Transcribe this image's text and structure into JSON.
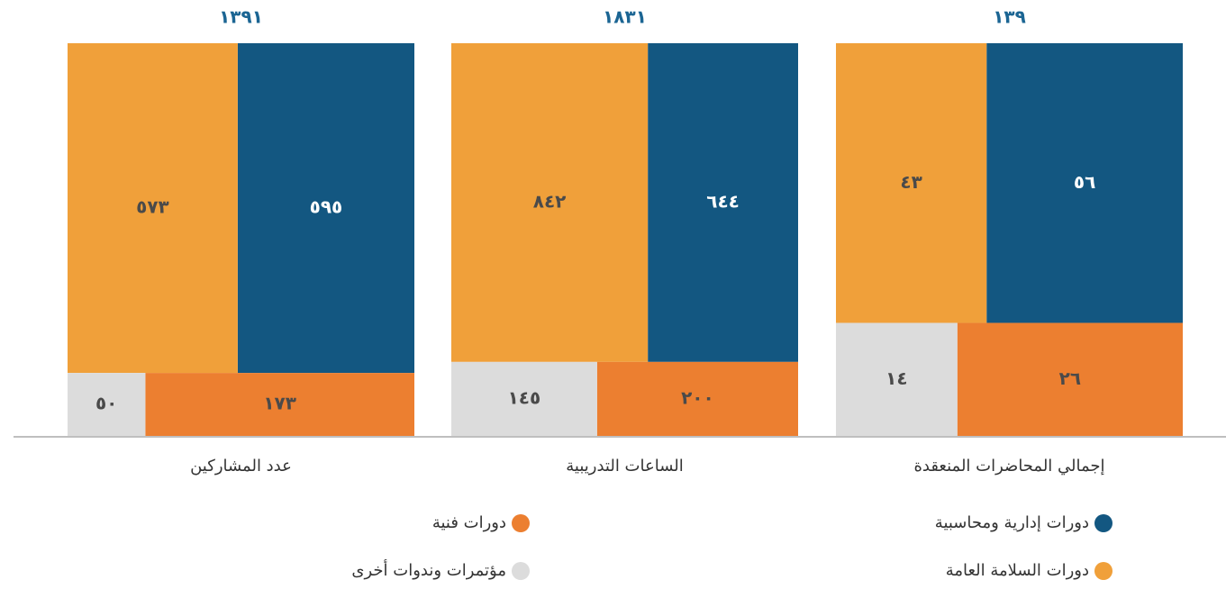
{
  "chart_data": {
    "type": "mosaic",
    "categories": [
      "إجمالي المحاضرات المنعقدة",
      "الساعات التدريبية",
      "عدد المشاركين"
    ],
    "totals": [
      139,
      1831,
      1391
    ],
    "total_labels": [
      "١٣٩",
      "١٨٣١",
      "١٣٩١"
    ],
    "series": [
      {
        "name": "دورات إدارية ومحاسبية",
        "color": "#135781",
        "values": [
          56,
          644,
          595
        ],
        "value_labels": [
          "٥٦",
          "٦٤٤",
          "٥٩٥"
        ]
      },
      {
        "name": "دورات السلامة العامة",
        "color": "#f0a03a",
        "values": [
          43,
          842,
          573
        ],
        "value_labels": [
          "٤٣",
          "٨٤٢",
          "٥٧٣"
        ]
      },
      {
        "name": "دورات فنية",
        "color": "#ec7f30",
        "values": [
          26,
          200,
          173
        ],
        "value_labels": [
          "٢٦",
          "٢٠٠",
          "١٧٣"
        ]
      },
      {
        "name": "مؤتمرات وندوات أخرى",
        "color": "#dcdcdc",
        "values": [
          14,
          145,
          50
        ],
        "value_labels": [
          "١٤",
          "١٤٥",
          "٥٠"
        ]
      }
    ]
  }
}
